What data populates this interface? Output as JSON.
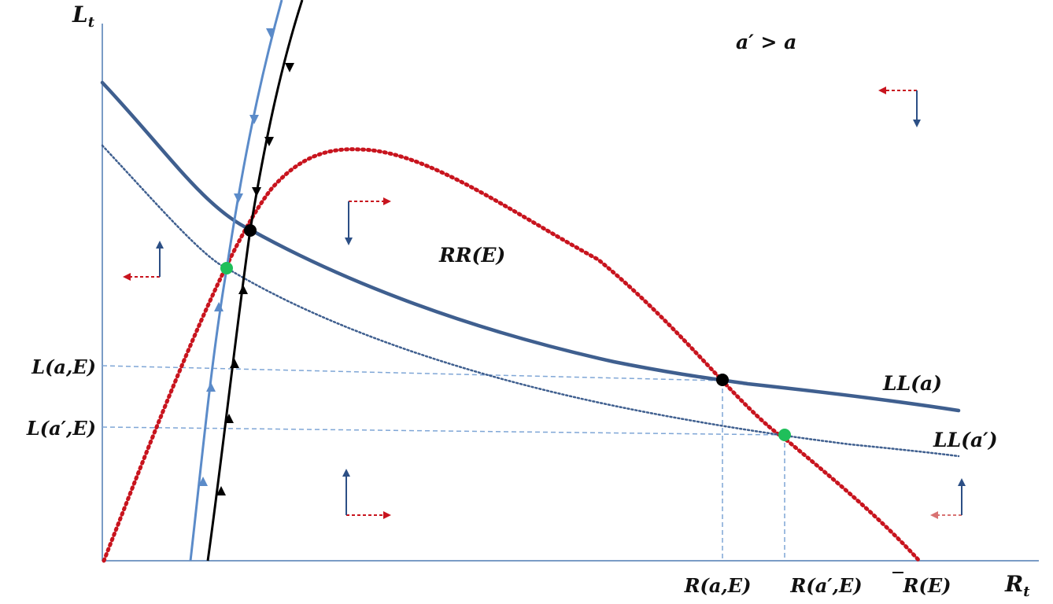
{
  "axes": {
    "y_label": "L",
    "y_sub": "t",
    "x_label": "R",
    "x_sub": "t"
  },
  "condition": "a′ > a",
  "curves": {
    "rr": "RR(E)",
    "ll_a": "LL(a)",
    "ll_a_prime": "LL(a′)"
  },
  "y_ticks": {
    "l_a_e": "L(a,E)",
    "l_a_prime_e": "L(a′,E)"
  },
  "x_ticks": {
    "r_a_e": "R(a,E)",
    "r_a_prime_e": "R(a′,E)",
    "r_bar_e": "R(E)"
  },
  "colors": {
    "axis": "#7a9cc6",
    "rr": "#c8141e",
    "ll": "#3f5f8f",
    "saddle_light": "#5b8bc9",
    "saddle_dark": "#000000",
    "equilibrium_a": "#000000",
    "equilibrium_a_prime": "#1fbf5a",
    "guide": "#7fa6d6",
    "arrow_red": "#c8141e",
    "arrow_blue": "#2c4f85"
  }
}
